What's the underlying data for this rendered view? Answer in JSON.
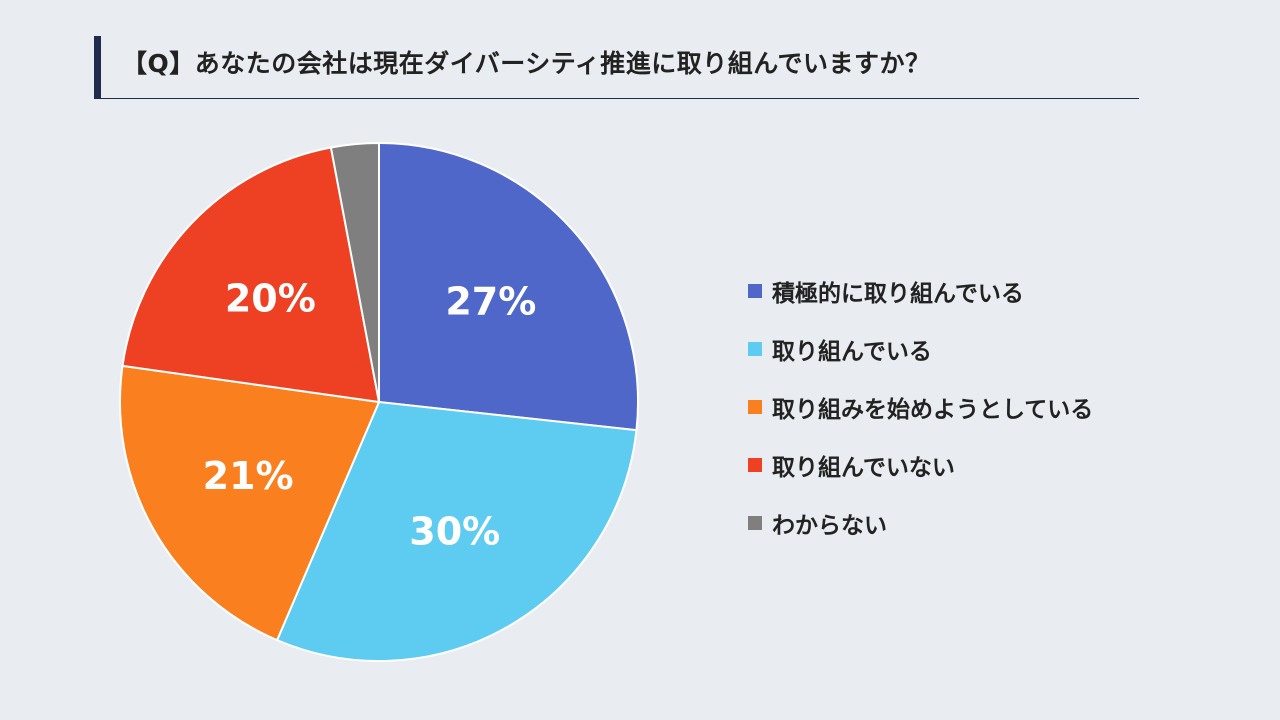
{
  "header": {
    "title": "【Q】あなたの会社は現在ダイバーシティ推進に取り組んでいますか？"
  },
  "chart_data": {
    "type": "pie",
    "title": "【Q】あなたの会社は現在ダイバーシティ推進に取り組んでいますか？",
    "legend_position": "right",
    "slices": [
      {
        "name": "積極的に取り組んでいる",
        "value": 27,
        "label": "27%",
        "color": "#4f67c8"
      },
      {
        "name": "取り組んでいる",
        "value": 30,
        "label": "30%",
        "color": "#5ecbf1"
      },
      {
        "name": "取り組みを始めようとしている",
        "value": 21,
        "label": "21%",
        "color": "#f97f1f"
      },
      {
        "name": "取り組んでいない",
        "value": 20,
        "label": "20%",
        "color": "#ee4123"
      },
      {
        "name": "わからない",
        "value": 3,
        "label": "",
        "color": "#7f7f7f"
      }
    ]
  }
}
